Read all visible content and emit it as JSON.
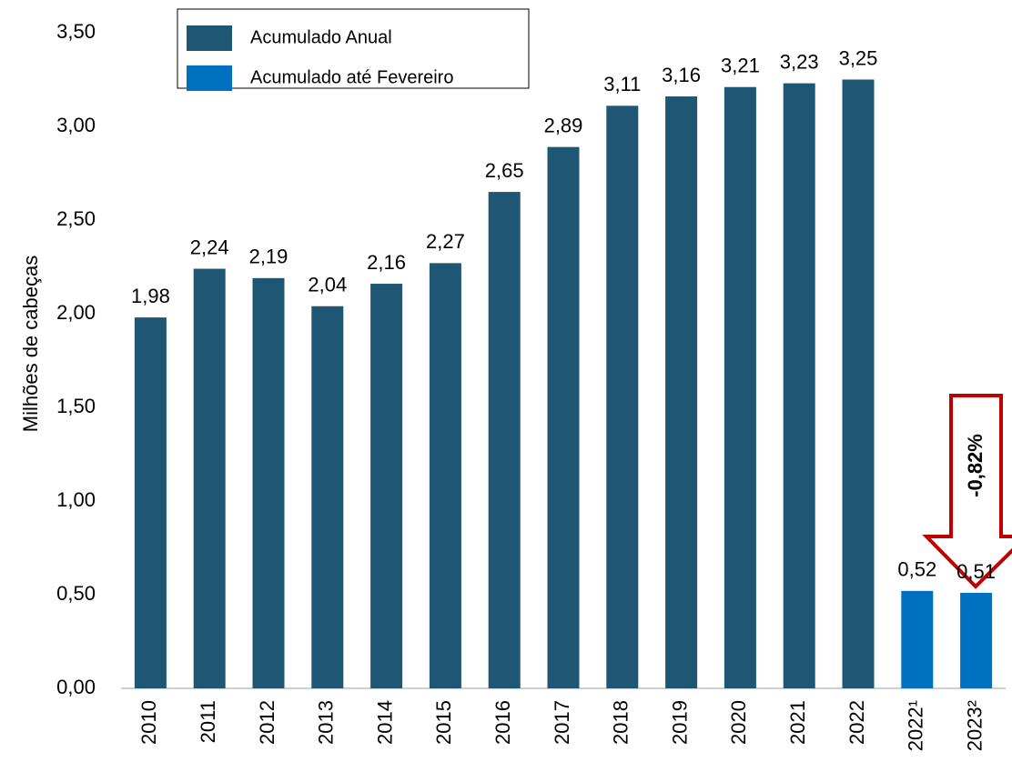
{
  "chart_data": {
    "type": "bar",
    "y_label": "Milhões de cabeças",
    "categories": [
      "2010",
      "2011",
      "2012",
      "2013",
      "2014",
      "2015",
      "2016",
      "2017",
      "2018",
      "2019",
      "2020",
      "2021",
      "2022",
      "2022¹",
      "2023²"
    ],
    "series": [
      {
        "name": "Acumulado Anual",
        "color": "#1f5673",
        "values": [
          1.98,
          2.24,
          2.19,
          2.04,
          2.16,
          2.27,
          2.65,
          2.89,
          3.11,
          3.16,
          3.21,
          3.23,
          3.25,
          null,
          null
        ],
        "value_labels": [
          "1,98",
          "2,24",
          "2,19",
          "2,04",
          "2,16",
          "2,27",
          "2,65",
          "2,89",
          "3,11",
          "3,16",
          "3,21",
          "3,23",
          "3,25",
          null,
          null
        ]
      },
      {
        "name": "Acumulado até Fevereiro",
        "color": "#0070c0",
        "values": [
          null,
          null,
          null,
          null,
          null,
          null,
          null,
          null,
          null,
          null,
          null,
          null,
          null,
          0.52,
          0.51
        ],
        "value_labels": [
          null,
          null,
          null,
          null,
          null,
          null,
          null,
          null,
          null,
          null,
          null,
          null,
          null,
          "0,52",
          "0,51"
        ]
      }
    ],
    "ylim": [
      0,
      3.5
    ],
    "yticks": [
      {
        "value": 0,
        "label": "0,00"
      },
      {
        "value": 0.5,
        "label": "0,50"
      },
      {
        "value": 1,
        "label": "1,00"
      },
      {
        "value": 1.5,
        "label": "1,50"
      },
      {
        "value": 2,
        "label": "2,00"
      },
      {
        "value": 2.5,
        "label": "2,50"
      },
      {
        "value": 3,
        "label": "3,00"
      },
      {
        "value": 3.5,
        "label": "3,50"
      }
    ],
    "annotation": "-0,82%"
  }
}
